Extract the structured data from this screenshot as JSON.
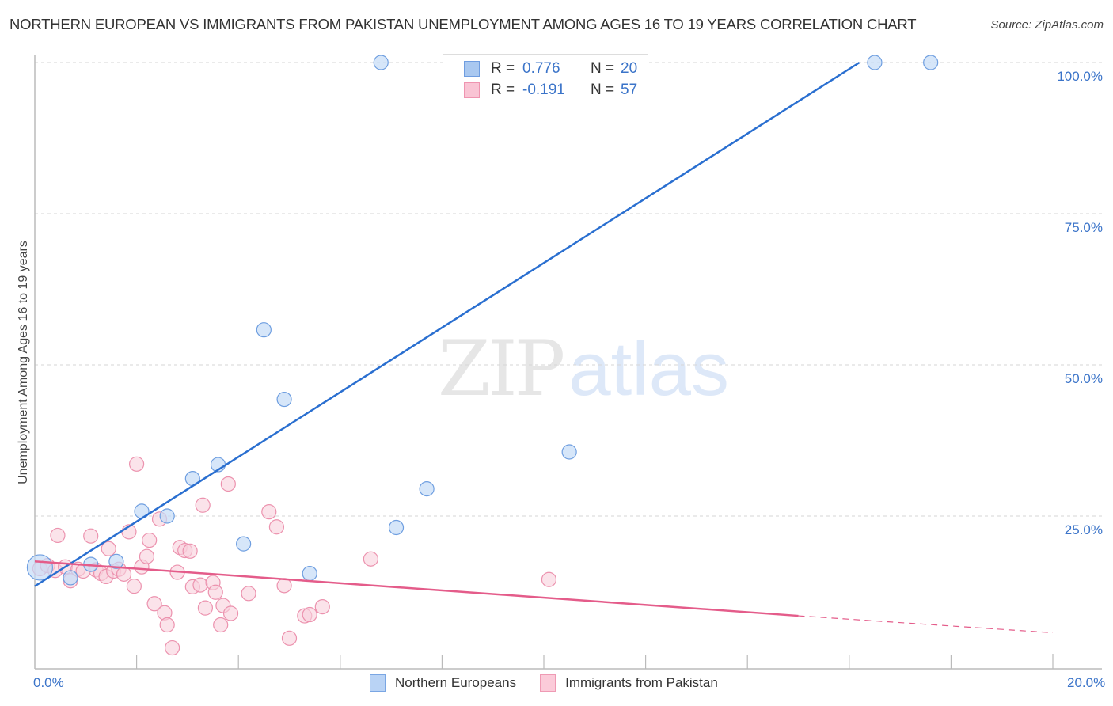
{
  "header": {
    "title": "NORTHERN EUROPEAN VS IMMIGRANTS FROM PAKISTAN UNEMPLOYMENT AMONG AGES 16 TO 19 YEARS CORRELATION CHART",
    "source": "Source: ZipAtlas.com"
  },
  "watermark": {
    "zip": "ZIP",
    "atlas": "atlas"
  },
  "legend_top": {
    "rows": [
      {
        "r_label": "R =",
        "r_value": "0.776",
        "n_label": "N =",
        "n_value": "20",
        "color": "#a9c8f0",
        "border": "#6f9de0"
      },
      {
        "r_label": "R =",
        "r_value": "-0.191",
        "n_label": "N =",
        "n_value": "57",
        "color": "#f9c4d4",
        "border": "#ef94b0"
      }
    ]
  },
  "legend_bottom": {
    "items": [
      {
        "label": "Northern Europeans",
        "color": "#b9d3f5",
        "border": "#7aa6e3"
      },
      {
        "label": "Immigrants from Pakistan",
        "color": "#fbcbd9",
        "border": "#ef9ab4"
      }
    ]
  },
  "axes": {
    "y_label": "Unemployment Among Ages 16 to 19 years",
    "y_ticks": [
      "100.0%",
      "75.0%",
      "50.0%",
      "25.0%"
    ],
    "x_ticks": [
      "0.0%",
      "20.0%"
    ]
  },
  "colors": {
    "blue_fill": "#c5dbf6",
    "blue_stroke": "#6e9ee0",
    "blue_line": "#2a6fd0",
    "pink_fill": "#f9d0dc",
    "pink_stroke": "#ec92ae",
    "pink_line": "#e45c8a",
    "tick_label": "#3b74c9"
  },
  "chart_data": {
    "type": "scatter",
    "title": "NORTHERN EUROPEAN VS IMMIGRANTS FROM PAKISTAN UNEMPLOYMENT AMONG AGES 16 TO 19 YEARS CORRELATION CHART",
    "xlabel": "",
    "ylabel": "Unemployment Among Ages 16 to 19 years",
    "xlim": [
      0,
      20
    ],
    "ylim": [
      0,
      100
    ],
    "x_unit": "%",
    "y_unit": "%",
    "grid": {
      "y_dashed": [
        25,
        50,
        75,
        100
      ]
    },
    "legend_position": "bottom-center",
    "series": [
      {
        "name": "Northern Europeans",
        "R": 0.776,
        "N": 20,
        "trendline": {
          "x0": 0,
          "y0": 13.4,
          "x1": 16.2,
          "y1": 100
        },
        "points": [
          {
            "x": 0.1,
            "y": 16.5,
            "size": "large"
          },
          {
            "x": 0.7,
            "y": 14.8
          },
          {
            "x": 1.1,
            "y": 17.0
          },
          {
            "x": 1.6,
            "y": 17.5
          },
          {
            "x": 2.1,
            "y": 25.8
          },
          {
            "x": 2.6,
            "y": 25.0
          },
          {
            "x": 3.1,
            "y": 31.2
          },
          {
            "x": 3.6,
            "y": 33.5
          },
          {
            "x": 4.1,
            "y": 20.4
          },
          {
            "x": 4.5,
            "y": 55.8
          },
          {
            "x": 4.9,
            "y": 44.3
          },
          {
            "x": 5.4,
            "y": 15.5
          },
          {
            "x": 6.8,
            "y": 100.0
          },
          {
            "x": 7.1,
            "y": 23.1
          },
          {
            "x": 7.7,
            "y": 29.5
          },
          {
            "x": 10.5,
            "y": 35.6
          },
          {
            "x": 16.5,
            "y": 100.0
          },
          {
            "x": 17.6,
            "y": 100.0
          }
        ]
      },
      {
        "name": "Immigrants from Pakistan",
        "R": -0.191,
        "N": 57,
        "trendline": {
          "x0": 0,
          "y0": 17.5,
          "x1": 15.0,
          "y1": 8.5,
          "dashed_to": {
            "x": 20,
            "y": 5.7
          }
        },
        "points": [
          {
            "x": 0.1,
            "y": 16.3
          },
          {
            "x": 0.25,
            "y": 16.8
          },
          {
            "x": 0.4,
            "y": 16.0
          },
          {
            "x": 0.45,
            "y": 21.8
          },
          {
            "x": 0.6,
            "y": 16.6
          },
          {
            "x": 0.7,
            "y": 14.3
          },
          {
            "x": 0.85,
            "y": 16.2
          },
          {
            "x": 0.95,
            "y": 15.9
          },
          {
            "x": 1.1,
            "y": 21.7
          },
          {
            "x": 1.2,
            "y": 16.1
          },
          {
            "x": 1.3,
            "y": 15.5
          },
          {
            "x": 1.4,
            "y": 15.0
          },
          {
            "x": 1.45,
            "y": 19.6
          },
          {
            "x": 1.55,
            "y": 15.9
          },
          {
            "x": 1.65,
            "y": 16.2
          },
          {
            "x": 1.75,
            "y": 15.4
          },
          {
            "x": 1.85,
            "y": 22.4
          },
          {
            "x": 1.95,
            "y": 13.4
          },
          {
            "x": 2.0,
            "y": 33.6
          },
          {
            "x": 2.1,
            "y": 16.6
          },
          {
            "x": 2.2,
            "y": 18.3
          },
          {
            "x": 2.25,
            "y": 21.0
          },
          {
            "x": 2.35,
            "y": 10.5
          },
          {
            "x": 2.45,
            "y": 24.5
          },
          {
            "x": 2.55,
            "y": 9.0
          },
          {
            "x": 2.6,
            "y": 7.0
          },
          {
            "x": 2.7,
            "y": 3.2
          },
          {
            "x": 2.8,
            "y": 15.7
          },
          {
            "x": 2.85,
            "y": 19.8
          },
          {
            "x": 2.95,
            "y": 19.3
          },
          {
            "x": 3.05,
            "y": 19.2
          },
          {
            "x": 3.1,
            "y": 13.3
          },
          {
            "x": 3.25,
            "y": 13.6
          },
          {
            "x": 3.3,
            "y": 26.8
          },
          {
            "x": 3.35,
            "y": 9.8
          },
          {
            "x": 3.5,
            "y": 14.0
          },
          {
            "x": 3.55,
            "y": 12.4
          },
          {
            "x": 3.65,
            "y": 7.0
          },
          {
            "x": 3.7,
            "y": 10.2
          },
          {
            "x": 3.8,
            "y": 30.3
          },
          {
            "x": 3.85,
            "y": 8.9
          },
          {
            "x": 4.2,
            "y": 12.2
          },
          {
            "x": 4.6,
            "y": 25.7
          },
          {
            "x": 4.75,
            "y": 23.2
          },
          {
            "x": 4.9,
            "y": 13.5
          },
          {
            "x": 5.0,
            "y": 4.8
          },
          {
            "x": 5.3,
            "y": 8.5
          },
          {
            "x": 5.4,
            "y": 8.7
          },
          {
            "x": 5.65,
            "y": 10.0
          },
          {
            "x": 6.6,
            "y": 17.9
          },
          {
            "x": 10.1,
            "y": 14.5
          }
        ]
      }
    ]
  }
}
